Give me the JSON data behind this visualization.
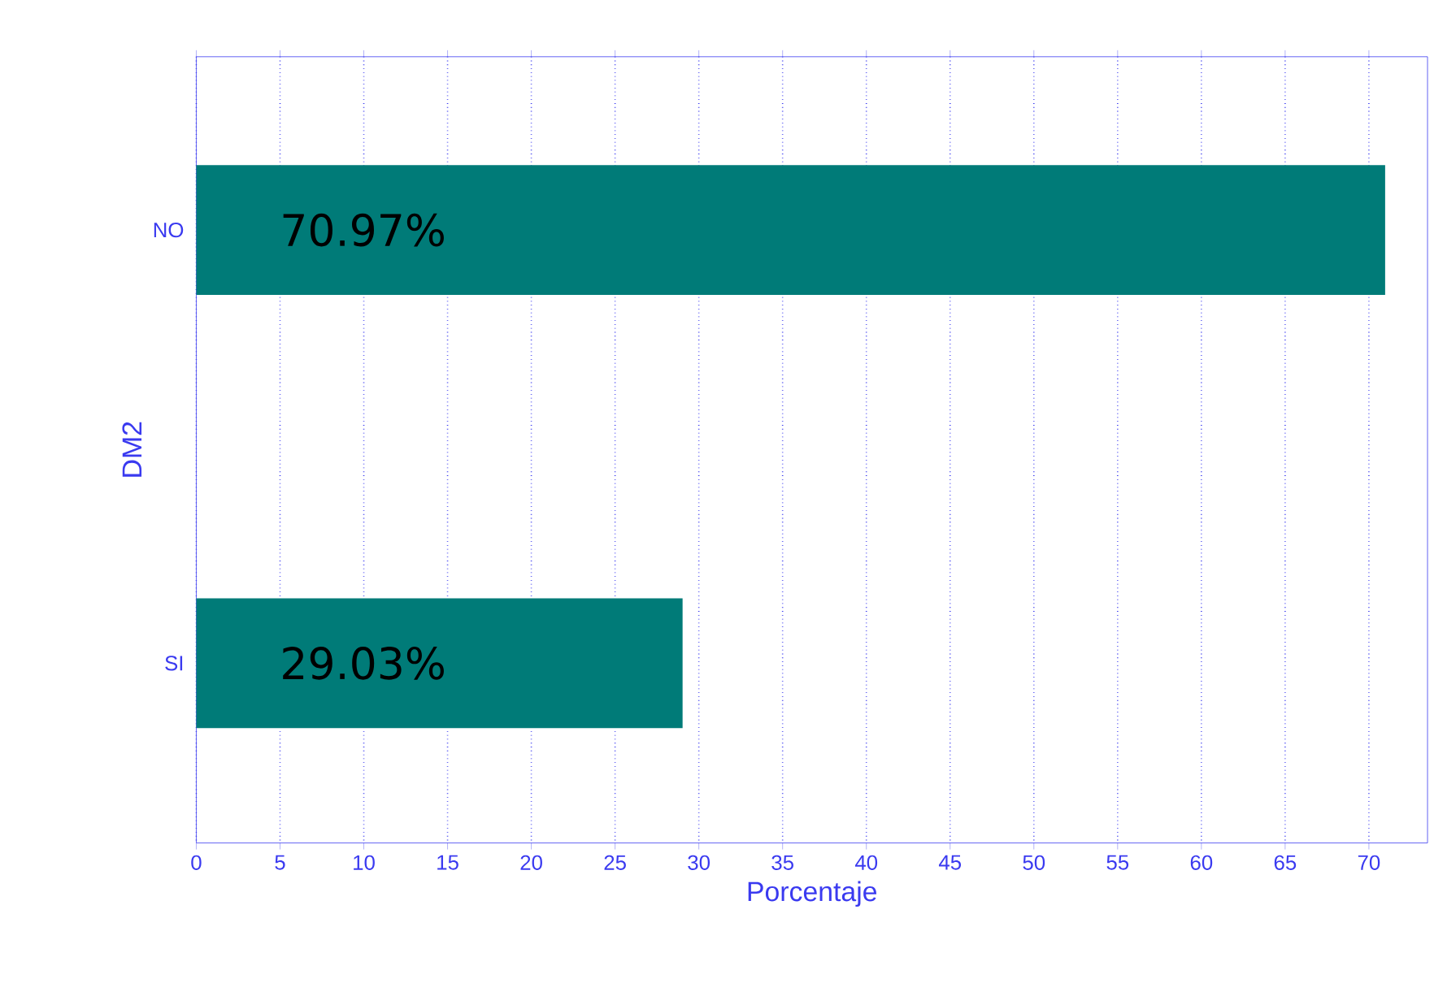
{
  "chart_data": {
    "type": "bar",
    "orientation": "horizontal",
    "categories": [
      "NO",
      "SI"
    ],
    "values": [
      70.97,
      29.03
    ],
    "value_labels": [
      "70.97%",
      "29.03%"
    ],
    "color": "#007b78",
    "xlabel": "Porcentaje",
    "ylabel": "DM2",
    "xlim": [
      0,
      73.5
    ],
    "xticks": [
      0,
      5,
      10,
      15,
      20,
      25,
      30,
      35,
      40,
      45,
      50,
      55,
      60,
      65,
      70
    ],
    "grid": "x"
  }
}
